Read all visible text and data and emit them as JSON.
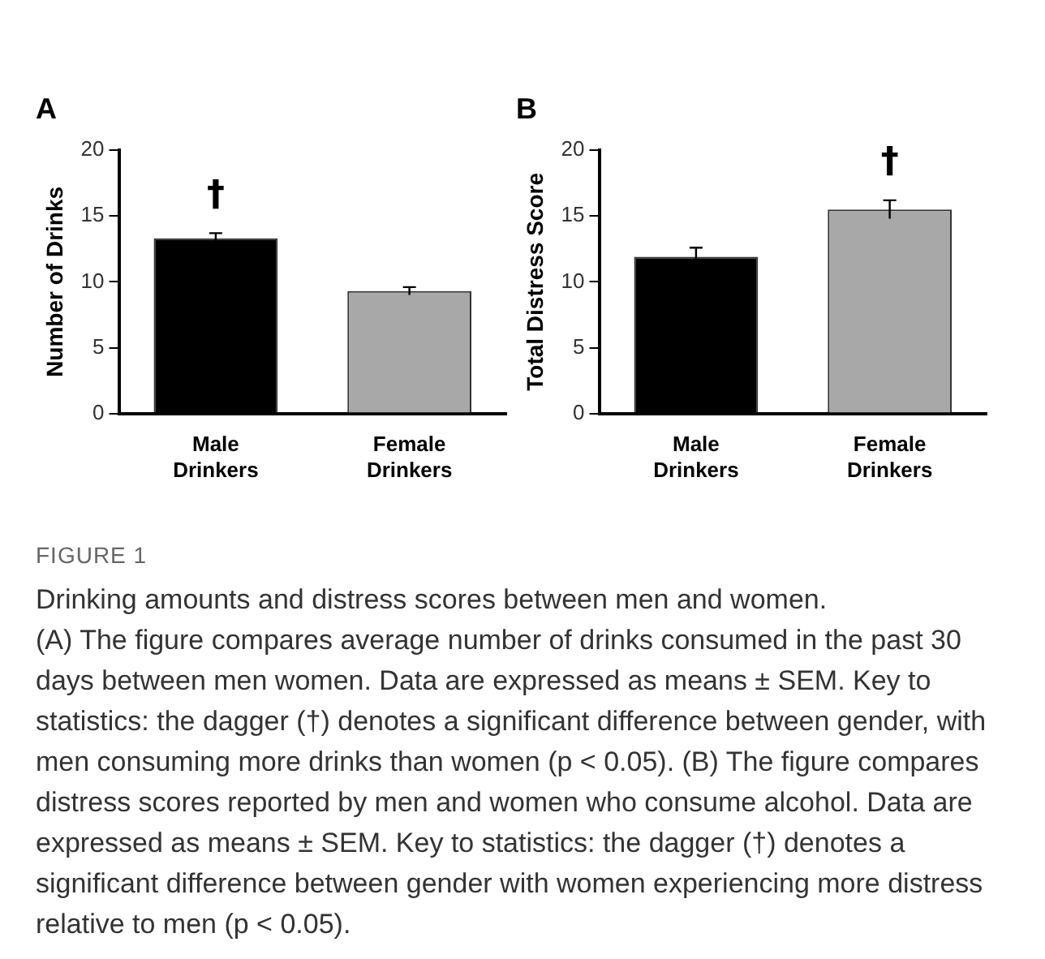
{
  "chart_data": [
    {
      "type": "bar",
      "title": "A",
      "ylabel": "Number of Drinks",
      "categories": [
        "Male Drinkers",
        "Female Drinkers"
      ],
      "values": [
        13.3,
        9.3
      ],
      "colors": [
        "#000000",
        "#a8a8a8"
      ],
      "errors": [
        0.4,
        0.3
      ],
      "ylim": [
        0,
        20
      ],
      "yticks": [
        0,
        5,
        10,
        15,
        20
      ],
      "grid": false,
      "legend": false,
      "annotations": [
        "†",
        "FIGURE 1",
        "(A) The figure compares average number of drinks consumed in the past 30 days between men women. Data are expressed as means ± SEM. Key to statistics: the dagger (†) denotes a significant difference between gender, with men consuming more drinks than women (p < 0.05). (B) The figure compares distress scores reported by men and women who consume alcohol. Data are expressed as means ± SEM. Key to statistics: the dagger (†) denotes a significant difference between gender with women experiencing more distress relative to men (p < 0.05).",
        "Drinking amounts and distress scores between men and women."
      ]
    },
    {
      "type": "bar",
      "title": "B",
      "ylabel": "Total Distress Score",
      "categories": [
        "Male Drinkers",
        "Female Drinkers"
      ],
      "values": [
        11.9,
        15.5
      ],
      "colors": [
        "#000000",
        "#a8a8a8"
      ],
      "errors": [
        0.7,
        0.7
      ],
      "ylim": [
        0,
        20
      ],
      "yticks": [
        0,
        5,
        10,
        15,
        20
      ],
      "grid": false,
      "legend": false,
      "annotations": [
        "†"
      ]
    }
  ]
}
